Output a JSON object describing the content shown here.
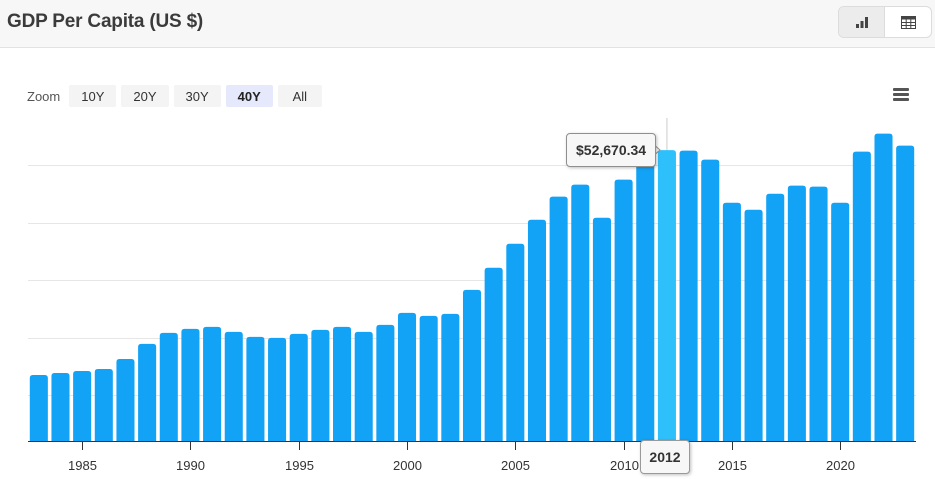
{
  "header": {
    "title": "GDP Per Capita (US $)",
    "view_toggle": [
      {
        "name": "chart-view",
        "icon": "bar-chart-icon",
        "active": true
      },
      {
        "name": "table-view",
        "icon": "table-icon",
        "active": false
      }
    ]
  },
  "zoom": {
    "label": "Zoom",
    "options": [
      {
        "label": "10Y",
        "selected": false
      },
      {
        "label": "20Y",
        "selected": false
      },
      {
        "label": "30Y",
        "selected": false
      },
      {
        "label": "40Y",
        "selected": true
      },
      {
        "label": "All",
        "selected": false
      }
    ]
  },
  "menu": {
    "icon": "hamburger-menu-icon"
  },
  "tooltip": {
    "value": "$52,670.34",
    "year": "2012"
  },
  "colors": {
    "bar": "#12a3f6",
    "bar_highlight": "#2ec0fb",
    "gridline": "#e6e6e6",
    "axis": "#333333"
  },
  "chart_data": {
    "type": "bar",
    "title": "GDP Per Capita (US $)",
    "xlabel": "",
    "ylabel": "",
    "grid": true,
    "y_axis_labels_visible": false,
    "ylim": [
      2000,
      57000
    ],
    "y_gridlines": [
      10000,
      20000,
      30000,
      40000,
      50000
    ],
    "x_tick_labels": [
      "1985",
      "1990",
      "1995",
      "2000",
      "2005",
      "2010",
      "2015",
      "2020"
    ],
    "categories": [
      1983,
      1984,
      1985,
      1986,
      1987,
      1988,
      1989,
      1990,
      1991,
      1992,
      1993,
      1994,
      1995,
      1996,
      1997,
      1998,
      1999,
      2000,
      2001,
      2002,
      2003,
      2004,
      2005,
      2006,
      2007,
      2008,
      2009,
      2010,
      2011,
      2012,
      2013,
      2014,
      2015,
      2016,
      2017,
      2018,
      2019,
      2020,
      2021,
      2022,
      2023
    ],
    "values": [
      13490,
      13840,
      14190,
      14540,
      16280,
      18900,
      20820,
      21520,
      21870,
      20990,
      20120,
      19950,
      20640,
      21340,
      21870,
      20990,
      22220,
      24310,
      23790,
      24130,
      28320,
      32160,
      36350,
      40540,
      44550,
      46650,
      40890,
      47520,
      52400,
      52670.34,
      52580,
      51010,
      43500,
      42280,
      45070,
      46470,
      46300,
      43500,
      52400,
      55540,
      53450
    ],
    "highlighted": {
      "category": 2012,
      "value": 52670.34,
      "label": "$52,670.34"
    }
  }
}
